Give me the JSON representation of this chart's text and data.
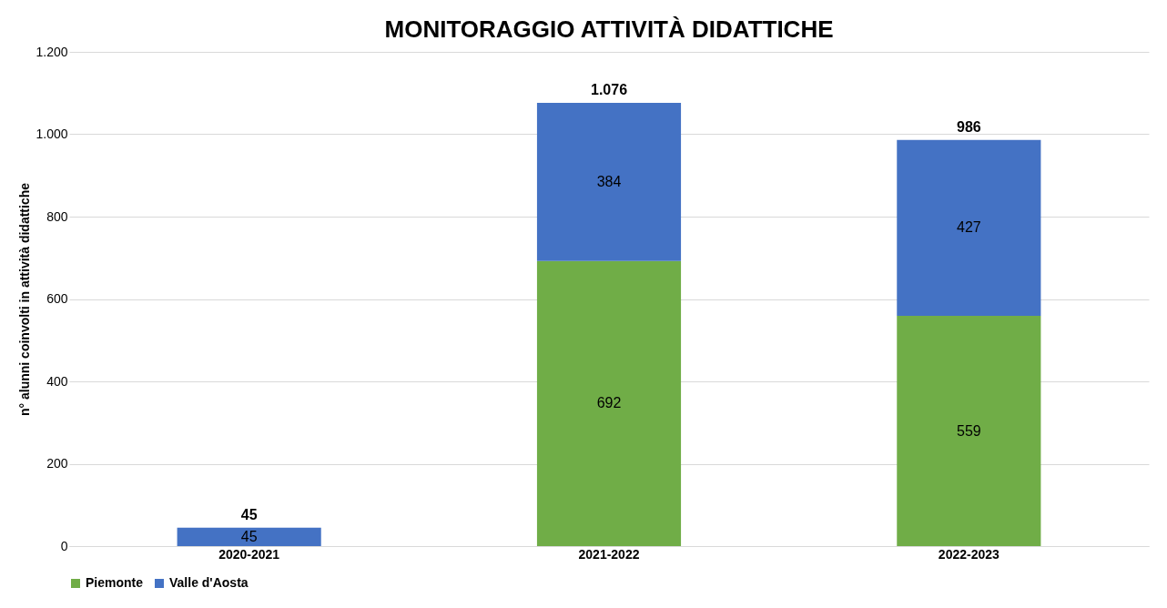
{
  "chart_data": {
    "type": "bar",
    "title": "MONITORAGGIO ATTIVITÀ DIDATTICHE",
    "ylabel": "n° alunni coinvolti in attività didattiche",
    "categories": [
      "2020-2021",
      "2021-2022",
      "2022-2023"
    ],
    "series": [
      {
        "name": "Piemonte",
        "color": "#70ad47",
        "values": [
          null,
          692,
          559
        ]
      },
      {
        "name": "Valle d'Aosta",
        "color": "#4472c4",
        "values": [
          45,
          384,
          427
        ]
      }
    ],
    "stacked": true,
    "data_labels": true,
    "totals": [
      "45",
      "1.076",
      "986"
    ],
    "ylim": [
      0,
      1200
    ],
    "yticks": [
      0,
      200,
      400,
      600,
      800,
      {
        "value": 1000,
        "label": "1.000"
      },
      {
        "value": 1200,
        "label": "1.200"
      }
    ],
    "grid": "y",
    "legend": "bottom"
  }
}
